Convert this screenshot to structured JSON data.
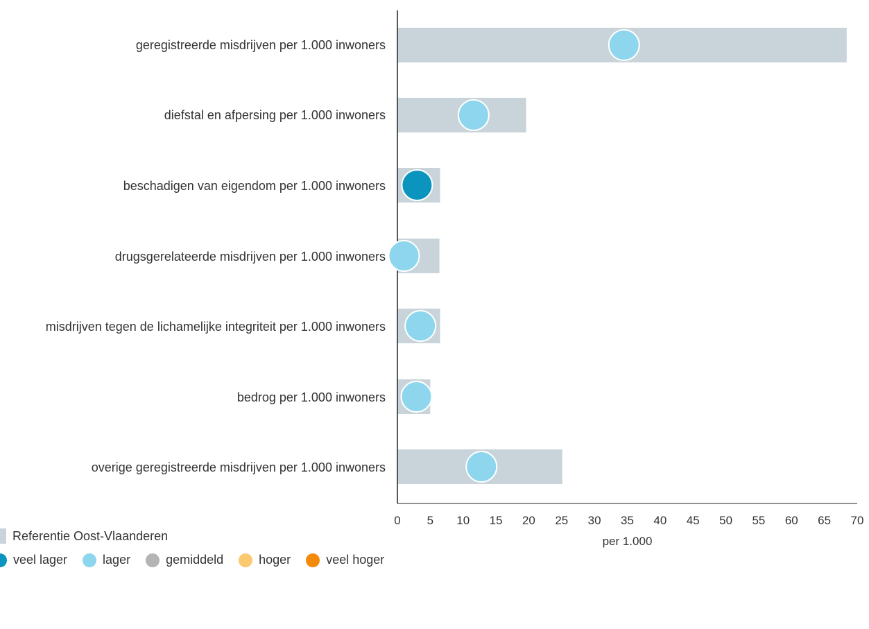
{
  "chart_data": {
    "type": "bar",
    "categories": [
      "geregistreerde misdrijven per 1.000 inwoners",
      "diefstal en afpersing per 1.000 inwoners",
      "beschadigen van eigendom per 1.000 inwoners",
      "drugsgerelateerde misdrijven per 1.000 inwoners",
      "misdrijven tegen de lichamelijke integriteit per 1.000 inwoners",
      "bedrog per 1.000 inwoners",
      "overige geregistreerde misdrijven per 1.000 inwoners"
    ],
    "series": [
      {
        "name": "Referentie Oost-Vlaanderen",
        "type": "bar",
        "values": [
          68.4,
          19.6,
          6.5,
          6.4,
          6.5,
          5.0,
          25.1
        ]
      },
      {
        "type": "point",
        "values": [
          34.5,
          11.6,
          3.0,
          1.0,
          3.5,
          2.9,
          12.8
        ],
        "levels": [
          "lager",
          "lager",
          "veel lager",
          "lager",
          "lager",
          "lager",
          "lager"
        ]
      }
    ],
    "xlabel": "per 1.000",
    "ylabel": "",
    "xlim": [
      0,
      70
    ],
    "xticks": [
      0,
      5,
      10,
      15,
      20,
      25,
      30,
      35,
      40,
      45,
      50,
      55,
      60,
      65,
      70
    ],
    "orientation": "horizontal",
    "grid": false,
    "legend_position": "bottom-left"
  },
  "legend": {
    "reference_label": "Referentie Oost-Vlaanderen",
    "levels": [
      {
        "key": "veel lager",
        "label": "veel lager",
        "color": "#0a94be"
      },
      {
        "key": "lager",
        "label": "lager",
        "color": "#8dd6ed"
      },
      {
        "key": "gemiddeld",
        "label": "gemiddeld",
        "color": "#b4b4b4"
      },
      {
        "key": "hoger",
        "label": "hoger",
        "color": "#fcc870"
      },
      {
        "key": "veel hoger",
        "label": "veel hoger",
        "color": "#f58a0a"
      }
    ]
  },
  "colors": {
    "reference_bar": "#c8d4d9",
    "axis": "#222222",
    "dot_outline": "#ffffff"
  }
}
